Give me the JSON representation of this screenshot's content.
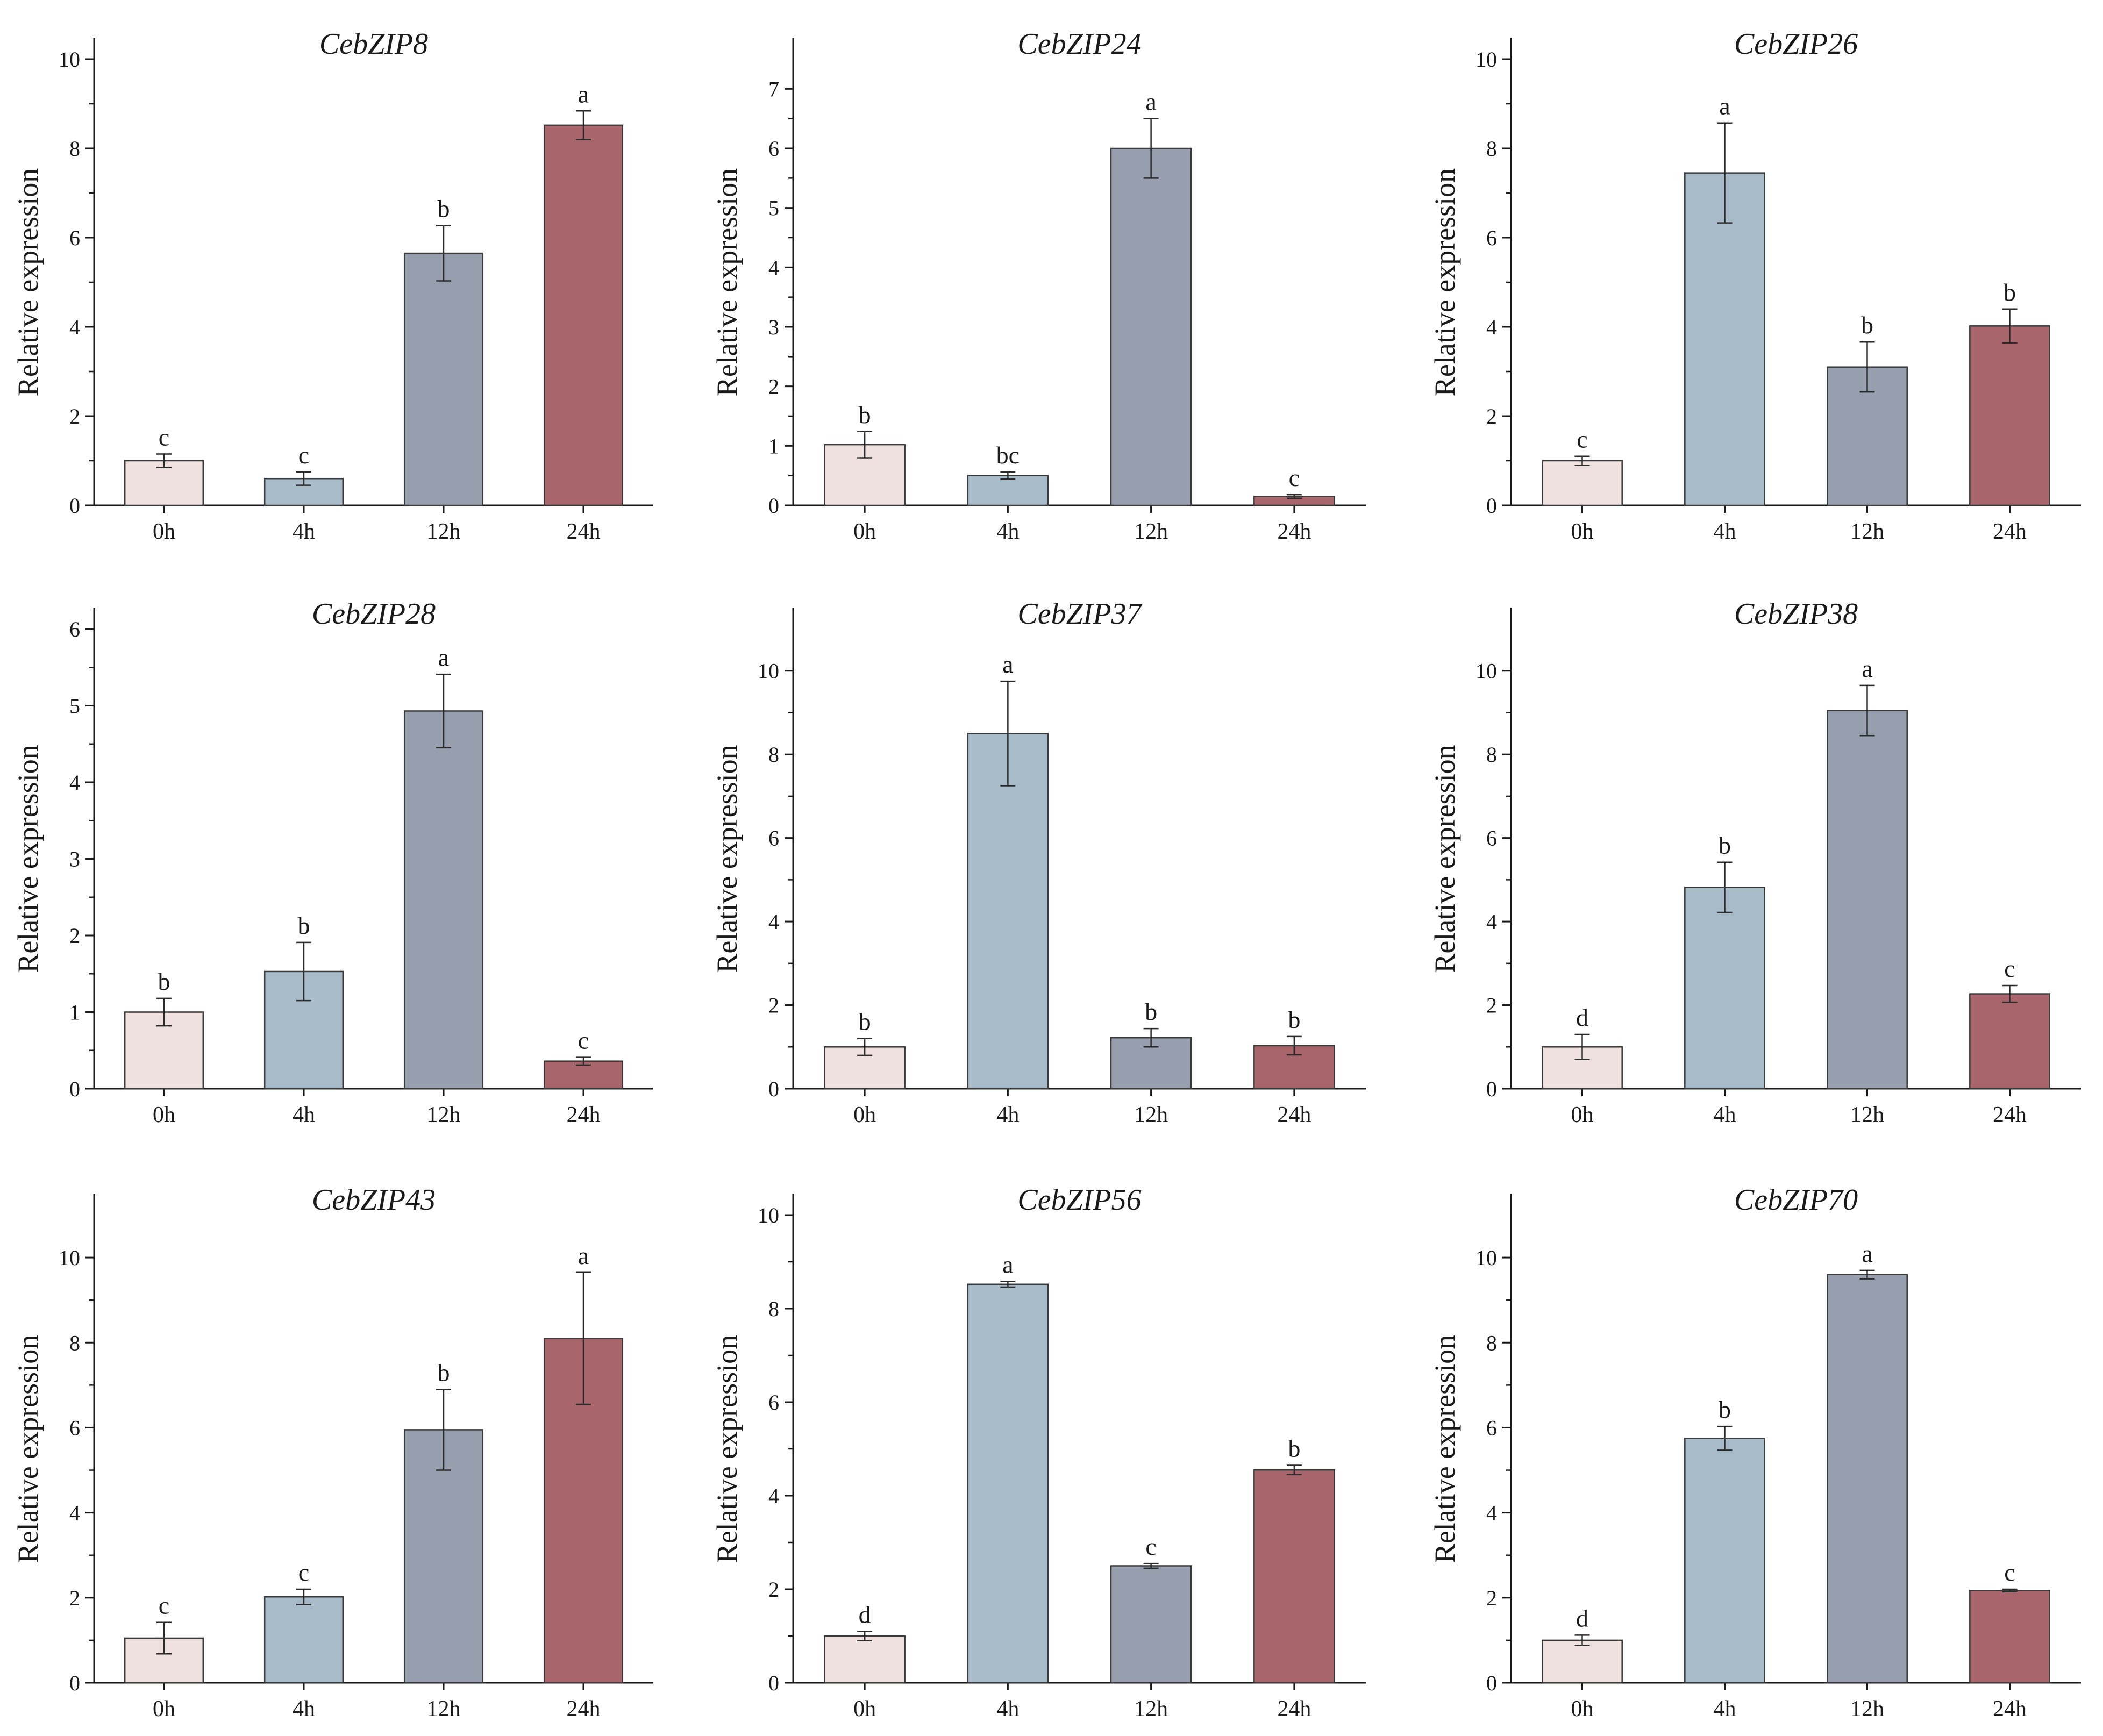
{
  "chart_data": [
    {
      "type": "bar",
      "title": "CebZIP8",
      "ylabel": "Relative expression",
      "categories": [
        "0h",
        "4h",
        "12h",
        "24h"
      ],
      "values": [
        1.0,
        0.6,
        5.65,
        8.52
      ],
      "errors": [
        0.15,
        0.15,
        0.62,
        0.32
      ],
      "significance": [
        "c",
        "c",
        "b",
        "a"
      ],
      "ylim": [
        0,
        10
      ],
      "yticks": [
        0,
        2,
        4,
        6,
        8,
        10
      ],
      "ytick_labels": [
        "0",
        "2",
        "4",
        "6",
        "8",
        "10"
      ]
    },
    {
      "type": "bar",
      "title": "CebZIP24",
      "ylabel": "Relative expression",
      "categories": [
        "0h",
        "4h",
        "12h",
        "24h"
      ],
      "values": [
        1.02,
        0.5,
        6.0,
        0.15
      ],
      "errors": [
        0.22,
        0.06,
        0.5,
        0.03
      ],
      "significance": [
        "b",
        "bc",
        "a",
        "c"
      ],
      "ylim": [
        0,
        7.5
      ],
      "yticks": [
        0,
        1,
        2,
        3,
        4,
        5,
        6,
        7
      ],
      "ytick_labels": [
        "0",
        "1",
        "2",
        "3",
        "4",
        "5",
        "6",
        "7"
      ]
    },
    {
      "type": "bar",
      "title": "CebZIP26",
      "ylabel": "Relative expression",
      "categories": [
        "0h",
        "4h",
        "12h",
        "24h"
      ],
      "values": [
        1.0,
        7.45,
        3.1,
        4.02
      ],
      "errors": [
        0.1,
        1.12,
        0.56,
        0.38
      ],
      "significance": [
        "c",
        "a",
        "b",
        "b"
      ],
      "ylim": [
        0,
        10
      ],
      "yticks": [
        0,
        2,
        4,
        6,
        8,
        10
      ],
      "ytick_labels": [
        "0",
        "2",
        "4",
        "6",
        "8",
        "10"
      ]
    },
    {
      "type": "bar",
      "title": "CebZIP28",
      "ylabel": "Relative expression",
      "categories": [
        "0h",
        "4h",
        "12h",
        "24h"
      ],
      "values": [
        1.0,
        1.53,
        4.93,
        0.36
      ],
      "errors": [
        0.18,
        0.38,
        0.48,
        0.05
      ],
      "significance": [
        "b",
        "b",
        "a",
        "c"
      ],
      "ylim": [
        0,
        6
      ],
      "yticks": [
        0,
        1,
        2,
        3,
        4,
        5,
        6
      ],
      "ytick_labels": [
        "0",
        "1",
        "2",
        "3",
        "4",
        "5",
        "6"
      ]
    },
    {
      "type": "bar",
      "title": "CebZIP37",
      "ylabel": "Relative expression",
      "categories": [
        "0h",
        "4h",
        "12h",
        "24h"
      ],
      "values": [
        1.0,
        8.5,
        1.22,
        1.03
      ],
      "errors": [
        0.2,
        1.25,
        0.22,
        0.22
      ],
      "significance": [
        "b",
        "a",
        "b",
        "b"
      ],
      "ylim": [
        0,
        11
      ],
      "yticks": [
        0,
        2,
        4,
        6,
        8,
        10
      ],
      "ytick_labels": [
        "0",
        "2",
        "4",
        "6",
        "8",
        "10"
      ]
    },
    {
      "type": "bar",
      "title": "CebZIP38",
      "ylabel": "Relative expression",
      "categories": [
        "0h",
        "4h",
        "12h",
        "24h"
      ],
      "values": [
        1.0,
        4.82,
        9.05,
        2.27
      ],
      "errors": [
        0.3,
        0.6,
        0.6,
        0.2
      ],
      "significance": [
        "d",
        "b",
        "a",
        "c"
      ],
      "ylim": [
        0,
        11
      ],
      "yticks": [
        0,
        2,
        4,
        6,
        8,
        10
      ],
      "ytick_labels": [
        "0",
        "2",
        "4",
        "6",
        "8",
        "10"
      ]
    },
    {
      "type": "bar",
      "title": "CebZIP43",
      "ylabel": "Relative expression",
      "categories": [
        "0h",
        "4h",
        "12h",
        "24h"
      ],
      "values": [
        1.05,
        2.02,
        5.95,
        8.1
      ],
      "errors": [
        0.37,
        0.18,
        0.95,
        1.55
      ],
      "significance": [
        "c",
        "c",
        "b",
        "a"
      ],
      "ylim": [
        0,
        11
      ],
      "yticks": [
        0,
        2,
        4,
        6,
        8,
        10
      ],
      "ytick_labels": [
        "0",
        "2",
        "4",
        "6",
        "8",
        "10"
      ]
    },
    {
      "type": "bar",
      "title": "CebZIP56",
      "ylabel": "Relative expression",
      "categories": [
        "0h",
        "4h",
        "12h",
        "24h"
      ],
      "values": [
        1.0,
        8.52,
        2.5,
        4.55
      ],
      "errors": [
        0.1,
        0.06,
        0.05,
        0.1
      ],
      "significance": [
        "d",
        "a",
        "c",
        "b"
      ],
      "ylim": [
        0,
        10
      ],
      "yticks": [
        0,
        2,
        4,
        6,
        8,
        10
      ],
      "ytick_labels": [
        "0",
        "2",
        "4",
        "6",
        "8",
        "10"
      ]
    },
    {
      "type": "bar",
      "title": "CebZIP70",
      "ylabel": "Relative expression",
      "categories": [
        "0h",
        "4h",
        "12h",
        "24h"
      ],
      "values": [
        1.0,
        5.75,
        9.6,
        2.17
      ],
      "errors": [
        0.12,
        0.28,
        0.1,
        0.03
      ],
      "significance": [
        "d",
        "b",
        "a",
        "c"
      ],
      "ylim": [
        0,
        11
      ],
      "yticks": [
        0,
        2,
        4,
        6,
        8,
        10
      ],
      "ytick_labels": [
        "0",
        "2",
        "4",
        "6",
        "8",
        "10"
      ]
    }
  ],
  "colors": {
    "0h": "#eee1df",
    "4h": "#a8bbc9",
    "12h": "#979faf",
    "24h": "#a8656c"
  }
}
